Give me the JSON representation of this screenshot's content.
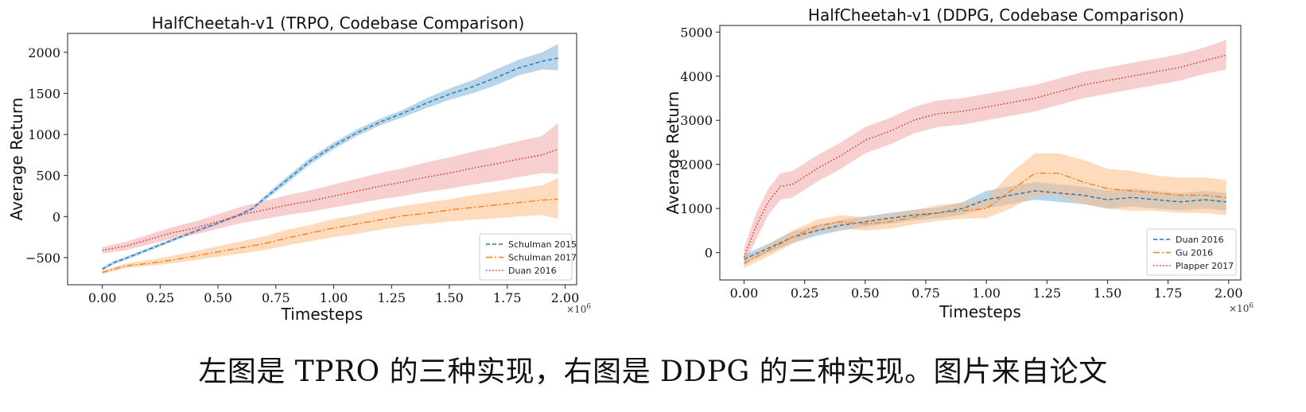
{
  "caption": "左图是 TPRO 的三种实现，右图是 DDPG 的三种实现。图片来自论文",
  "chart_data": [
    {
      "type": "line",
      "title": "HalfCheetah-v1 (TRPO, Codebase Comparison)",
      "xlabel": "Timesteps",
      "ylabel": "Average Return",
      "x_multiplier": "×10",
      "x_multiplier_exp": "6",
      "xlim": [
        -0.15,
        2.05
      ],
      "ylim": [
        -830,
        2230
      ],
      "xticks": [
        0.0,
        0.25,
        0.5,
        0.75,
        1.0,
        1.25,
        1.5,
        1.75,
        2.0
      ],
      "xtick_labels": [
        "0.00",
        "0.25",
        "0.50",
        "0.75",
        "1.00",
        "1.25",
        "1.50",
        "1.75",
        "2.00"
      ],
      "yticks": [
        -500,
        0,
        500,
        1000,
        1500,
        2000
      ],
      "ytick_labels": [
        "−500",
        "0",
        "500",
        "1000",
        "1500",
        "2000"
      ],
      "legend_position": "lower-right",
      "series": [
        {
          "name": "Schulman 2015",
          "color": "#1f77b4",
          "fill": "#7fb2d9",
          "dash": "dashed",
          "x": [
            0.0,
            0.05,
            0.1,
            0.2,
            0.3,
            0.4,
            0.5,
            0.6,
            0.65,
            0.7,
            0.8,
            0.9,
            1.0,
            1.1,
            1.2,
            1.3,
            1.4,
            1.5,
            1.6,
            1.7,
            1.8,
            1.9,
            1.97
          ],
          "y": [
            -640,
            -560,
            -510,
            -400,
            -290,
            -180,
            -80,
            30,
            100,
            220,
            450,
            680,
            860,
            1020,
            1150,
            1260,
            1380,
            1490,
            1580,
            1690,
            1810,
            1890,
            1930
          ],
          "low": [
            -660,
            -580,
            -530,
            -420,
            -310,
            -200,
            -100,
            10,
            80,
            190,
            410,
            640,
            820,
            980,
            1110,
            1210,
            1320,
            1420,
            1500,
            1600,
            1720,
            1790,
            1780
          ],
          "high": [
            -620,
            -540,
            -490,
            -380,
            -270,
            -160,
            -60,
            50,
            120,
            250,
            490,
            720,
            900,
            1060,
            1190,
            1300,
            1440,
            1560,
            1660,
            1790,
            1910,
            2000,
            2100
          ]
        },
        {
          "name": "Schulman 2017",
          "color": "#ff7f0e",
          "fill": "#fdbe85",
          "dash": "dashdot",
          "x": [
            0.0,
            0.1,
            0.2,
            0.3,
            0.4,
            0.5,
            0.6,
            0.7,
            0.8,
            0.9,
            1.0,
            1.1,
            1.2,
            1.3,
            1.4,
            1.5,
            1.6,
            1.7,
            1.8,
            1.9,
            1.97
          ],
          "y": [
            -680,
            -600,
            -570,
            -530,
            -480,
            -430,
            -380,
            -330,
            -260,
            -200,
            -140,
            -90,
            -40,
            10,
            40,
            80,
            110,
            140,
            170,
            200,
            210
          ],
          "low": [
            -700,
            -630,
            -600,
            -570,
            -530,
            -490,
            -450,
            -410,
            -350,
            -300,
            -250,
            -210,
            -160,
            -120,
            -90,
            -60,
            -40,
            -20,
            0,
            20,
            -30
          ],
          "high": [
            -660,
            -570,
            -530,
            -480,
            -420,
            -360,
            -300,
            -240,
            -160,
            -100,
            -30,
            20,
            80,
            130,
            170,
            210,
            260,
            300,
            340,
            380,
            470
          ]
        },
        {
          "name": "Duan 2016",
          "color": "#d62728",
          "fill": "#f0a8a8",
          "dash": "dotted",
          "x": [
            0.0,
            0.1,
            0.2,
            0.3,
            0.4,
            0.5,
            0.6,
            0.7,
            0.8,
            0.9,
            1.0,
            1.1,
            1.2,
            1.3,
            1.4,
            1.5,
            1.6,
            1.7,
            1.8,
            1.9,
            1.97
          ],
          "y": [
            -410,
            -360,
            -280,
            -200,
            -140,
            -60,
            20,
            80,
            140,
            190,
            250,
            310,
            370,
            420,
            480,
            530,
            590,
            640,
            700,
            750,
            820
          ],
          "low": [
            -450,
            -410,
            -340,
            -270,
            -220,
            -150,
            -80,
            -30,
            20,
            60,
            110,
            160,
            210,
            250,
            300,
            340,
            390,
            430,
            480,
            530,
            520
          ],
          "high": [
            -370,
            -310,
            -220,
            -130,
            -60,
            30,
            120,
            190,
            260,
            320,
            390,
            460,
            530,
            590,
            660,
            720,
            790,
            850,
            920,
            980,
            1140
          ]
        }
      ]
    },
    {
      "type": "line",
      "title": "HalfCheetah-v1 (DDPG, Codebase Comparison)",
      "xlabel": "Timesteps",
      "ylabel": "Average Return",
      "x_multiplier": "×10",
      "x_multiplier_exp": "6",
      "xlim": [
        -0.1,
        2.05
      ],
      "ylim": [
        -620,
        5150
      ],
      "xticks": [
        0.0,
        0.25,
        0.5,
        0.75,
        1.0,
        1.25,
        1.5,
        1.75,
        2.0
      ],
      "xtick_labels": [
        "0.00",
        "0.25",
        "0.50",
        "0.75",
        "1.00",
        "1.25",
        "1.50",
        "1.75",
        "2.00"
      ],
      "yticks": [
        0,
        1000,
        2000,
        3000,
        4000,
        5000
      ],
      "ytick_labels": [
        "0",
        "1000",
        "2000",
        "3000",
        "4000",
        "5000"
      ],
      "legend_position": "lower-right",
      "series": [
        {
          "name": "Duan 2016",
          "color": "#1f77b4",
          "fill": "#7fb2d9",
          "dash": "dashed",
          "x": [
            0.0,
            0.1,
            0.2,
            0.3,
            0.4,
            0.5,
            0.6,
            0.7,
            0.8,
            0.9,
            1.0,
            1.1,
            1.2,
            1.3,
            1.4,
            1.5,
            1.6,
            1.7,
            1.8,
            1.9,
            1.99
          ],
          "y": [
            -150,
            100,
            350,
            500,
            620,
            700,
            780,
            850,
            900,
            1000,
            1200,
            1300,
            1400,
            1350,
            1300,
            1200,
            1250,
            1200,
            1150,
            1200,
            1150
          ],
          "low": [
            -250,
            0,
            220,
            380,
            500,
            580,
            660,
            730,
            780,
            860,
            1000,
            1100,
            1200,
            1150,
            1100,
            1000,
            1050,
            1000,
            960,
            1000,
            950
          ],
          "high": [
            -50,
            200,
            480,
            620,
            740,
            820,
            900,
            970,
            1020,
            1140,
            1400,
            1500,
            1600,
            1550,
            1500,
            1400,
            1450,
            1400,
            1340,
            1400,
            1350
          ]
        },
        {
          "name": "Gu 2016",
          "color": "#ff7f0e",
          "fill": "#fdbe85",
          "dash": "dashdot",
          "x": [
            0.0,
            0.1,
            0.2,
            0.3,
            0.4,
            0.5,
            0.6,
            0.7,
            0.8,
            0.9,
            1.0,
            1.1,
            1.2,
            1.3,
            1.4,
            1.5,
            1.6,
            1.7,
            1.8,
            1.9,
            1.99
          ],
          "y": [
            -250,
            50,
            350,
            600,
            700,
            650,
            700,
            800,
            900,
            950,
            1000,
            1400,
            1800,
            1800,
            1600,
            1450,
            1400,
            1350,
            1300,
            1300,
            1250
          ],
          "low": [
            -350,
            -80,
            200,
            450,
            550,
            500,
            540,
            640,
            720,
            770,
            780,
            1000,
            1300,
            1300,
            1100,
            1000,
            950,
            950,
            900,
            900,
            850
          ],
          "high": [
            -150,
            180,
            500,
            750,
            850,
            800,
            860,
            960,
            1080,
            1130,
            1220,
            1800,
            2250,
            2250,
            2100,
            1900,
            1850,
            1750,
            1700,
            1700,
            1650
          ]
        },
        {
          "name": "Plapper 2017",
          "color": "#d62728",
          "fill": "#f0a8a8",
          "dash": "dotted",
          "x": [
            0.0,
            0.05,
            0.1,
            0.15,
            0.2,
            0.3,
            0.4,
            0.5,
            0.6,
            0.7,
            0.8,
            0.9,
            1.0,
            1.1,
            1.2,
            1.3,
            1.4,
            1.5,
            1.6,
            1.7,
            1.8,
            1.9,
            1.99
          ],
          "y": [
            -100,
            600,
            1150,
            1500,
            1550,
            1900,
            2200,
            2550,
            2750,
            3000,
            3150,
            3200,
            3300,
            3400,
            3500,
            3650,
            3800,
            3900,
            4000,
            4100,
            4200,
            4350,
            4480
          ],
          "low": [
            -300,
            300,
            850,
            1200,
            1250,
            1600,
            1900,
            2250,
            2450,
            2700,
            2850,
            2900,
            3000,
            3100,
            3200,
            3350,
            3500,
            3600,
            3700,
            3800,
            3900,
            4050,
            4150
          ],
          "high": [
            100,
            900,
            1450,
            1800,
            1850,
            2200,
            2500,
            2850,
            3050,
            3300,
            3450,
            3500,
            3600,
            3700,
            3800,
            3950,
            4100,
            4200,
            4300,
            4400,
            4500,
            4650,
            4820
          ]
        }
      ]
    }
  ]
}
